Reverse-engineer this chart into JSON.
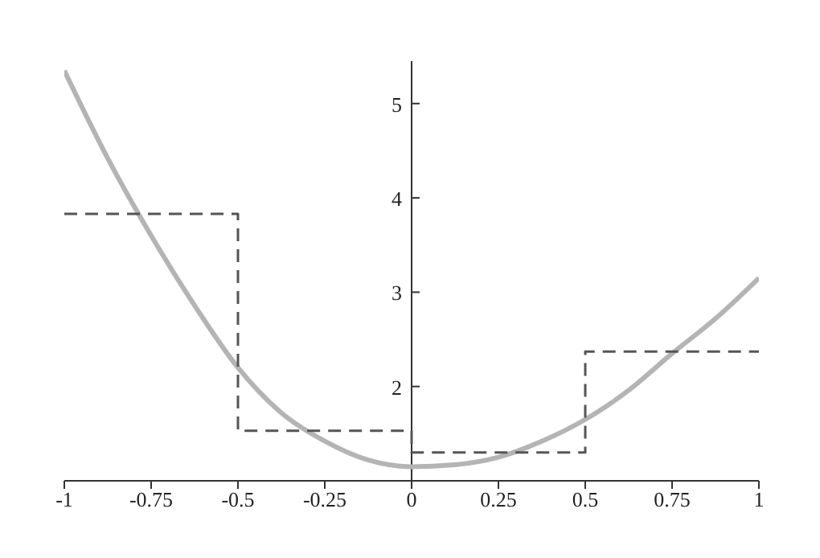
{
  "chart_data": {
    "type": "line",
    "xlim": [
      -1,
      1
    ],
    "ylim": [
      1,
      5.45
    ],
    "xticks": [
      -1,
      -0.75,
      -0.5,
      -0.25,
      0,
      0.25,
      0.5,
      0.75,
      1
    ],
    "yticks": [
      2,
      3,
      4,
      5
    ],
    "grid": false,
    "marker": "none",
    "series": [
      {
        "color": "#b4b4b4",
        "line_style": "solid",
        "x": [
          -1,
          -0.875,
          -0.75,
          -0.625,
          -0.5,
          -0.375,
          -0.25,
          -0.125,
          0,
          0.125,
          0.25,
          0.375,
          0.5,
          0.625,
          0.75,
          0.875,
          1
        ],
        "values": [
          5.35,
          4.42,
          3.6,
          2.86,
          2.2,
          1.72,
          1.42,
          1.22,
          1.15,
          1.17,
          1.25,
          1.42,
          1.65,
          1.96,
          2.35,
          2.72,
          3.15
        ]
      },
      {
        "type": "step",
        "color": "#555555",
        "line_style": "dashed",
        "x": [
          -1,
          -0.5,
          0,
          0.5,
          1
        ],
        "values": [
          3.83,
          1.53,
          1.3,
          2.37,
          2.37
        ]
      }
    ]
  }
}
